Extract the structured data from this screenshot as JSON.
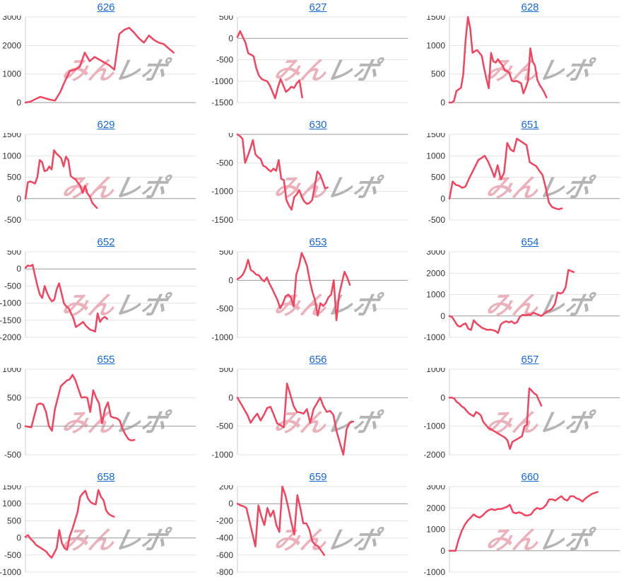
{
  "page": {
    "background": "#ffffff"
  },
  "watermark": {
    "part1": "みん",
    "part2": "レポ",
    "part1_color": "#ecb0bb",
    "part2_color": "#b4b4b4"
  },
  "styles": {
    "line_color": "#f2435f",
    "grid_color": "#e3e3e3",
    "zero_line_color": "#999999",
    "axis_line_color": "#cccccc",
    "label_color": "#333333",
    "link_color": "#1767d2"
  },
  "chart_data": [
    {
      "type": "line",
      "title": "626",
      "ylim": [
        0,
        3000
      ],
      "yticks": [
        0,
        1000,
        2000,
        3000
      ],
      "span": 0.87,
      "values": [
        0,
        30,
        120,
        200,
        150,
        100,
        70,
        350,
        750,
        1100,
        1150,
        1250,
        1750,
        1450,
        1600,
        1500,
        1400,
        1300,
        1150,
        2400,
        2550,
        2620,
        2450,
        2250,
        2100,
        2350,
        2200,
        2100,
        2050,
        1900,
        1750
      ]
    },
    {
      "type": "line",
      "title": "627",
      "ylim": [
        -1500,
        500
      ],
      "yticks": [
        -1500,
        -1000,
        -500,
        0,
        500
      ],
      "span": 0.38,
      "values": [
        30,
        170,
        30,
        -100,
        -350,
        -380,
        -420,
        -700,
        -870,
        -950,
        -980,
        -1000,
        -1100,
        -1250,
        -1400,
        -1150,
        -950,
        -1100,
        -1250,
        -1200,
        -1130,
        -1160,
        -1050,
        -980,
        -1380
      ]
    },
    {
      "type": "line",
      "title": "628",
      "ylim": [
        0,
        1500
      ],
      "yticks": [
        0,
        500,
        1000,
        1500
      ],
      "span": 0.57,
      "values": [
        0,
        0,
        30,
        200,
        230,
        260,
        500,
        1100,
        1500,
        1300,
        870,
        900,
        920,
        870,
        820,
        600,
        420,
        250,
        870,
        720,
        700,
        760,
        700,
        650,
        560,
        550,
        510,
        380,
        370,
        380,
        360,
        340,
        160,
        260,
        380,
        950,
        720,
        650,
        400,
        310,
        250,
        180,
        90
      ]
    },
    {
      "type": "line",
      "title": "629",
      "ylim": [
        -500,
        1500
      ],
      "yticks": [
        -500,
        0,
        500,
        1000,
        1500
      ],
      "span": 0.42,
      "values": [
        0,
        380,
        400,
        380,
        350,
        500,
        900,
        850,
        640,
        660,
        750,
        680,
        1130,
        1050,
        1000,
        940,
        750,
        980,
        900,
        530,
        480,
        450,
        370,
        300,
        130,
        300,
        120,
        50,
        -100,
        -160,
        -220
      ]
    },
    {
      "type": "line",
      "title": "630",
      "ylim": [
        -1500,
        0
      ],
      "yticks": [
        -1500,
        -1000,
        -500,
        0
      ],
      "span": 0.53,
      "values": [
        0,
        -30,
        -80,
        -500,
        -380,
        -250,
        -100,
        -350,
        -400,
        -430,
        -550,
        -570,
        -620,
        -650,
        -600,
        -640,
        -450,
        -780,
        -800,
        -1150,
        -1250,
        -1320,
        -1100,
        -1050,
        -980,
        -1100,
        -1180,
        -1220,
        -1200,
        -1150,
        -900,
        -650,
        -700,
        -820,
        -950,
        -930
      ]
    },
    {
      "type": "line",
      "title": "651",
      "ylim": [
        -500,
        1500
      ],
      "yticks": [
        -500,
        0,
        500,
        1000,
        1500
      ],
      "span": 0.66,
      "values": [
        0,
        400,
        320,
        300,
        250,
        280,
        450,
        600,
        750,
        900,
        950,
        1000,
        870,
        700,
        500,
        780,
        450,
        600,
        1300,
        1150,
        1100,
        1400,
        1350,
        1300,
        1250,
        850,
        800,
        760,
        650,
        550,
        250,
        -100,
        -200,
        -230,
        -250,
        -230
      ]
    },
    {
      "type": "line",
      "title": "652",
      "ylim": [
        -2000,
        500
      ],
      "yticks": [
        -2000,
        -1500,
        -1000,
        -500,
        0,
        500
      ],
      "span": 0.48,
      "values": [
        30,
        100,
        80,
        120,
        -200,
        -500,
        -750,
        -850,
        -500,
        -700,
        -850,
        -950,
        -900,
        -600,
        -420,
        -700,
        -1000,
        -1100,
        -1150,
        -1300,
        -1450,
        -1700,
        -1650,
        -1600,
        -1550,
        -1650,
        -1720,
        -1780,
        -1800,
        -1830,
        -1300,
        -1550,
        -1450,
        -1400,
        -1460
      ]
    },
    {
      "type": "line",
      "title": "653",
      "ylim": [
        -1000,
        500
      ],
      "yticks": [
        -1000,
        -500,
        0,
        500
      ],
      "span": 0.66,
      "values": [
        20,
        50,
        100,
        200,
        360,
        180,
        150,
        100,
        90,
        20,
        -20,
        50,
        -60,
        -150,
        -250,
        -350,
        -490,
        -400,
        -280,
        -250,
        -300,
        -460,
        100,
        250,
        480,
        380,
        250,
        0,
        -200,
        -350,
        -620,
        -400,
        -450,
        -400,
        -300,
        -250,
        0,
        -700,
        -250,
        -50,
        150,
        50,
        -80
      ]
    },
    {
      "type": "line",
      "title": "654",
      "ylim": [
        -1000,
        3000
      ],
      "yticks": [
        -1000,
        0,
        1000,
        2000,
        3000
      ],
      "span": 0.73,
      "values": [
        0,
        -50,
        -250,
        -450,
        -500,
        -400,
        -350,
        -600,
        -650,
        -200,
        -350,
        -450,
        -550,
        -600,
        -650,
        -640,
        -660,
        -700,
        -800,
        -400,
        -300,
        -250,
        -300,
        -250,
        -350,
        -300,
        -50,
        50,
        30,
        60,
        50,
        150,
        100,
        50,
        0,
        100,
        200,
        250,
        350,
        550,
        1100,
        1050,
        1100,
        1350,
        2150,
        2100,
        2050
      ]
    },
    {
      "type": "line",
      "title": "655",
      "ylim": [
        -500,
        1000
      ],
      "yticks": [
        -500,
        0,
        500,
        1000
      ],
      "span": 0.64,
      "values": [
        0,
        -10,
        -20,
        180,
        380,
        400,
        380,
        250,
        0,
        -80,
        300,
        500,
        700,
        750,
        800,
        820,
        900,
        800,
        650,
        500,
        510,
        500,
        250,
        630,
        500,
        400,
        50,
        300,
        420,
        170,
        150,
        140,
        100,
        -50,
        -150,
        -230,
        -250,
        -240
      ]
    },
    {
      "type": "line",
      "title": "656",
      "ylim": [
        -1000,
        500
      ],
      "yticks": [
        -1000,
        -500,
        0,
        500
      ],
      "span": 0.68,
      "values": [
        0,
        -100,
        -200,
        -300,
        -440,
        -350,
        -280,
        -400,
        -300,
        -180,
        -160,
        -300,
        -450,
        -480,
        -520,
        250,
        50,
        -150,
        -250,
        -260,
        -280,
        -200,
        -440,
        -200,
        -100,
        0,
        -150,
        -250,
        -230,
        -300,
        -600,
        -800,
        -1000,
        -550,
        -430,
        -420
      ]
    },
    {
      "type": "line",
      "title": "657",
      "ylim": [
        -2000,
        1000
      ],
      "yticks": [
        -2000,
        -1000,
        0,
        1000
      ],
      "span": 0.54,
      "values": [
        0,
        0,
        -30,
        -150,
        -200,
        -300,
        -350,
        -450,
        -550,
        -600,
        -650,
        -500,
        -550,
        -620,
        -850,
        -950,
        -1050,
        -1100,
        -1150,
        -1200,
        -1250,
        -1300,
        -1350,
        -1400,
        -1500,
        -1800,
        -1550,
        -1500,
        -1450,
        -1400,
        -1350,
        -1000,
        -950,
        330,
        250,
        150,
        100,
        -100,
        -280
      ]
    },
    {
      "type": "line",
      "title": "658",
      "ylim": [
        -1000,
        1500
      ],
      "yticks": [
        -1000,
        -500,
        0,
        500,
        1000,
        1500
      ],
      "span": 0.52,
      "values": [
        30,
        80,
        -30,
        -100,
        -200,
        -250,
        -300,
        -350,
        -400,
        -500,
        -580,
        -450,
        -300,
        230,
        -150,
        -300,
        -350,
        50,
        250,
        500,
        750,
        1200,
        1300,
        1380,
        1150,
        1050,
        1000,
        980,
        1400,
        1200,
        1100,
        800,
        700,
        650,
        620
      ]
    },
    {
      "type": "line",
      "title": "659",
      "ylim": [
        -800,
        200
      ],
      "yticks": [
        -800,
        -600,
        -400,
        -200,
        0,
        200
      ],
      "span": 0.51,
      "values": [
        0,
        -20,
        -30,
        -50,
        -200,
        -350,
        -500,
        -20,
        -150,
        -250,
        -50,
        -150,
        -80,
        -250,
        -330,
        200,
        100,
        -50,
        -220,
        -360,
        100,
        -50,
        -230,
        -230,
        -300,
        -440,
        -480,
        -500,
        -550,
        -600
      ]
    },
    {
      "type": "line",
      "title": "660",
      "ylim": [
        -1000,
        3000
      ],
      "yticks": [
        -1000,
        0,
        1000,
        2000,
        3000
      ],
      "span": 0.87,
      "values": [
        0,
        0,
        0,
        500,
        900,
        1200,
        1400,
        1550,
        1700,
        1600,
        1550,
        1650,
        1800,
        1900,
        1950,
        1900,
        1950,
        1950,
        2000,
        2050,
        2150,
        1800,
        1750,
        1800,
        1750,
        1650,
        1650,
        1700,
        1900,
        2000,
        1950,
        2000,
        2150,
        2400,
        2400,
        2350,
        2450,
        2550,
        2400,
        2350,
        2550,
        2550,
        2450,
        2400,
        2300,
        2450,
        2550,
        2650,
        2700,
        2750
      ]
    }
  ]
}
